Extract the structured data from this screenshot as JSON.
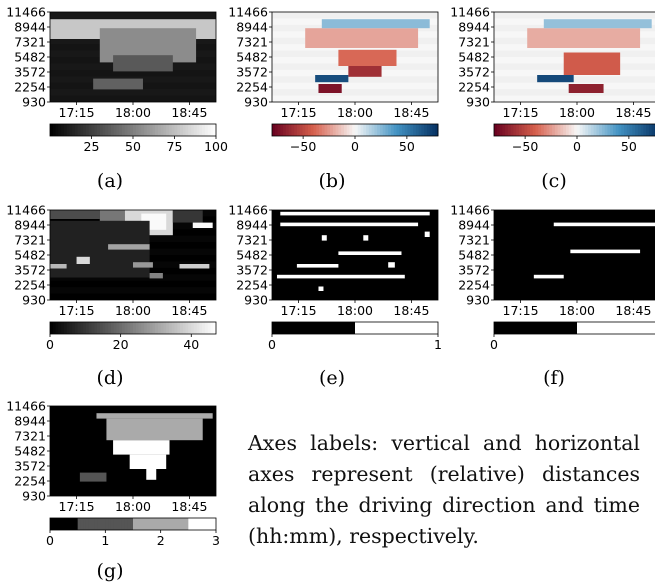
{
  "note": "Axes labels: vertical and horizontal axes represent (relative) distances along the driving direction and time (hh:mm), respectively.",
  "chart_data": [
    {
      "id": "a",
      "caption": "(a)",
      "type": "heatmap",
      "yticks": [
        "11466",
        "8944",
        "7321",
        "5482",
        "3572",
        "2254",
        "930"
      ],
      "xticks": [
        "17:15",
        "18:00",
        "18:45"
      ],
      "colorbar": {
        "colormap": "gray",
        "range": [
          0,
          100
        ],
        "ticks": [
          "25",
          "50",
          "75",
          "100"
        ]
      },
      "blobs": [
        {
          "t": [
            0.0,
            1.0
          ],
          "d": [
            0.7,
            0.92
          ],
          "v": 78
        },
        {
          "t": [
            0.3,
            0.88
          ],
          "d": [
            0.44,
            0.82
          ],
          "v": 55
        },
        {
          "t": [
            0.38,
            0.74
          ],
          "d": [
            0.34,
            0.52
          ],
          "v": 35
        },
        {
          "t": [
            0.26,
            0.56
          ],
          "d": [
            0.14,
            0.26
          ],
          "v": 38
        }
      ]
    },
    {
      "id": "b",
      "caption": "(b)",
      "type": "heatmap",
      "yticks": [
        "11466",
        "8944",
        "7321",
        "5482",
        "3572",
        "2254",
        "930"
      ],
      "xticks": [
        "17:15",
        "18:00",
        "18:45"
      ],
      "colorbar": {
        "colormap": "RdBu",
        "range": [
          -80,
          80
        ],
        "ticks": [
          "−50",
          "0",
          "50"
        ]
      },
      "blobs": [
        {
          "t": [
            0.2,
            0.88
          ],
          "d": [
            0.6,
            0.82
          ],
          "v": -22
        },
        {
          "t": [
            0.4,
            0.75
          ],
          "d": [
            0.4,
            0.58
          ],
          "v": -38
        },
        {
          "t": [
            0.46,
            0.66
          ],
          "d": [
            0.28,
            0.4
          ],
          "v": -60
        },
        {
          "t": [
            0.26,
            0.46
          ],
          "d": [
            0.22,
            0.3
          ],
          "v": 68
        },
        {
          "t": [
            0.28,
            0.42
          ],
          "d": [
            0.1,
            0.2
          ],
          "v": -72
        },
        {
          "t": [
            0.3,
            0.95
          ],
          "d": [
            0.82,
            0.92
          ],
          "v": 24
        }
      ]
    },
    {
      "id": "c",
      "caption": "(c)",
      "type": "heatmap",
      "yticks": [
        "11466",
        "8944",
        "7321",
        "5482",
        "3572",
        "2254",
        "930"
      ],
      "xticks": [
        "17:15",
        "18:00",
        "18:45"
      ],
      "colorbar": {
        "colormap": "RdBu",
        "range": [
          -80,
          80
        ],
        "ticks": [
          "−50",
          "0",
          "50"
        ]
      },
      "blobs": [
        {
          "t": [
            0.2,
            0.88
          ],
          "d": [
            0.6,
            0.82
          ],
          "v": -20
        },
        {
          "t": [
            0.42,
            0.76
          ],
          "d": [
            0.3,
            0.55
          ],
          "v": -42
        },
        {
          "t": [
            0.26,
            0.48
          ],
          "d": [
            0.22,
            0.3
          ],
          "v": 70
        },
        {
          "t": [
            0.45,
            0.66
          ],
          "d": [
            0.1,
            0.2
          ],
          "v": -66
        },
        {
          "t": [
            0.3,
            0.95
          ],
          "d": [
            0.82,
            0.92
          ],
          "v": 22
        }
      ]
    },
    {
      "id": "d",
      "caption": "(d)",
      "type": "heatmap",
      "yticks": [
        "11466",
        "8944",
        "7321",
        "5482",
        "3572",
        "2254",
        "930"
      ],
      "xticks": [
        "17:15",
        "18:00",
        "18:45"
      ],
      "colorbar": {
        "colormap": "gray",
        "range": [
          0,
          47
        ],
        "ticks": [
          "0",
          "20",
          "40"
        ]
      },
      "blobs": [
        {
          "t": [
            0.45,
            0.74
          ],
          "d": [
            0.72,
            1.0
          ],
          "v": 40
        },
        {
          "t": [
            0.55,
            0.7
          ],
          "d": [
            0.78,
            0.96
          ],
          "v": 46
        },
        {
          "t": [
            0.0,
            0.3
          ],
          "d": [
            0.9,
            1.0
          ],
          "v": 14
        },
        {
          "t": [
            0.3,
            0.45
          ],
          "d": [
            0.82,
            1.0
          ],
          "v": 22
        },
        {
          "t": [
            0.74,
            0.92
          ],
          "d": [
            0.86,
            1.0
          ],
          "v": 10
        },
        {
          "t": [
            0.0,
            0.6
          ],
          "d": [
            0.25,
            0.88
          ],
          "v": 6
        },
        {
          "t": [
            0.35,
            0.6
          ],
          "d": [
            0.56,
            0.62
          ],
          "v": 30
        },
        {
          "t": [
            0.0,
            0.1
          ],
          "d": [
            0.35,
            0.4
          ],
          "v": 34
        },
        {
          "t": [
            0.16,
            0.24
          ],
          "d": [
            0.4,
            0.48
          ],
          "v": 40
        },
        {
          "t": [
            0.5,
            0.62
          ],
          "d": [
            0.36,
            0.42
          ],
          "v": 28
        },
        {
          "t": [
            0.78,
            0.96
          ],
          "d": [
            0.35,
            0.4
          ],
          "v": 38
        },
        {
          "t": [
            0.6,
            0.68
          ],
          "d": [
            0.24,
            0.3
          ],
          "v": 24
        },
        {
          "t": [
            0.86,
            0.98
          ],
          "d": [
            0.8,
            0.86
          ],
          "v": 46
        }
      ]
    },
    {
      "id": "e",
      "caption": "(e)",
      "type": "heatmap",
      "yticks": [
        "11466",
        "8944",
        "7321",
        "5482",
        "3572",
        "2254",
        "930"
      ],
      "xticks": [
        "17:15",
        "18:00",
        "18:45"
      ],
      "colorbar": {
        "colormap": "binary",
        "range": [
          0,
          1
        ],
        "ticks": [
          "0",
          "1"
        ]
      },
      "blobs": [
        {
          "t": [
            0.05,
            0.95
          ],
          "d": [
            0.94,
            0.98
          ],
          "v": 1
        },
        {
          "t": [
            0.05,
            0.88
          ],
          "d": [
            0.82,
            0.86
          ],
          "v": 1
        },
        {
          "t": [
            0.4,
            0.78
          ],
          "d": [
            0.5,
            0.54
          ],
          "v": 1
        },
        {
          "t": [
            0.15,
            0.4
          ],
          "d": [
            0.36,
            0.4
          ],
          "v": 1
        },
        {
          "t": [
            0.03,
            0.8
          ],
          "d": [
            0.24,
            0.28
          ],
          "v": 1
        },
        {
          "t": [
            0.3,
            0.33
          ],
          "d": [
            0.66,
            0.72
          ],
          "v": 1
        },
        {
          "t": [
            0.55,
            0.58
          ],
          "d": [
            0.66,
            0.72
          ],
          "v": 1
        },
        {
          "t": [
            0.7,
            0.74
          ],
          "d": [
            0.36,
            0.42
          ],
          "v": 1
        },
        {
          "t": [
            0.92,
            0.95
          ],
          "d": [
            0.7,
            0.76
          ],
          "v": 1
        },
        {
          "t": [
            0.28,
            0.31
          ],
          "d": [
            0.1,
            0.15
          ],
          "v": 1
        }
      ]
    },
    {
      "id": "f",
      "caption": "(f)",
      "type": "heatmap",
      "yticks": [
        "11466",
        "8944",
        "7321",
        "5482",
        "3572",
        "2254",
        "930"
      ],
      "xticks": [
        "17:15",
        "18:00",
        "18:45"
      ],
      "colorbar": {
        "colormap": "binary",
        "range": [
          0,
          1
        ],
        "ticks": [
          "0",
          "1"
        ]
      },
      "blobs": [
        {
          "t": [
            0.36,
            0.98
          ],
          "d": [
            0.82,
            0.86
          ],
          "v": 1
        },
        {
          "t": [
            0.46,
            0.88
          ],
          "d": [
            0.52,
            0.56
          ],
          "v": 1
        },
        {
          "t": [
            0.24,
            0.42
          ],
          "d": [
            0.24,
            0.28
          ],
          "v": 1
        }
      ]
    },
    {
      "id": "g",
      "caption": "(g)",
      "type": "heatmap",
      "yticks": [
        "11466",
        "8944",
        "7321",
        "5482",
        "3572",
        "2254",
        "930"
      ],
      "xticks": [
        "17:15",
        "18:00",
        "18:45"
      ],
      "colorbar": {
        "colormap": "gray4",
        "range": [
          0,
          3
        ],
        "ticks": [
          "0",
          "1",
          "2",
          "3"
        ]
      },
      "blobs": [
        {
          "t": [
            0.28,
            0.98
          ],
          "d": [
            0.86,
            0.92
          ],
          "v": 2
        },
        {
          "t": [
            0.34,
            0.92
          ],
          "d": [
            0.62,
            0.86
          ],
          "v": 2
        },
        {
          "t": [
            0.38,
            0.72
          ],
          "d": [
            0.46,
            0.62
          ],
          "v": 3
        },
        {
          "t": [
            0.48,
            0.7
          ],
          "d": [
            0.3,
            0.46
          ],
          "v": 3
        },
        {
          "t": [
            0.58,
            0.64
          ],
          "d": [
            0.18,
            0.3
          ],
          "v": 3
        },
        {
          "t": [
            0.18,
            0.34
          ],
          "d": [
            0.16,
            0.26
          ],
          "v": 1
        }
      ]
    }
  ]
}
